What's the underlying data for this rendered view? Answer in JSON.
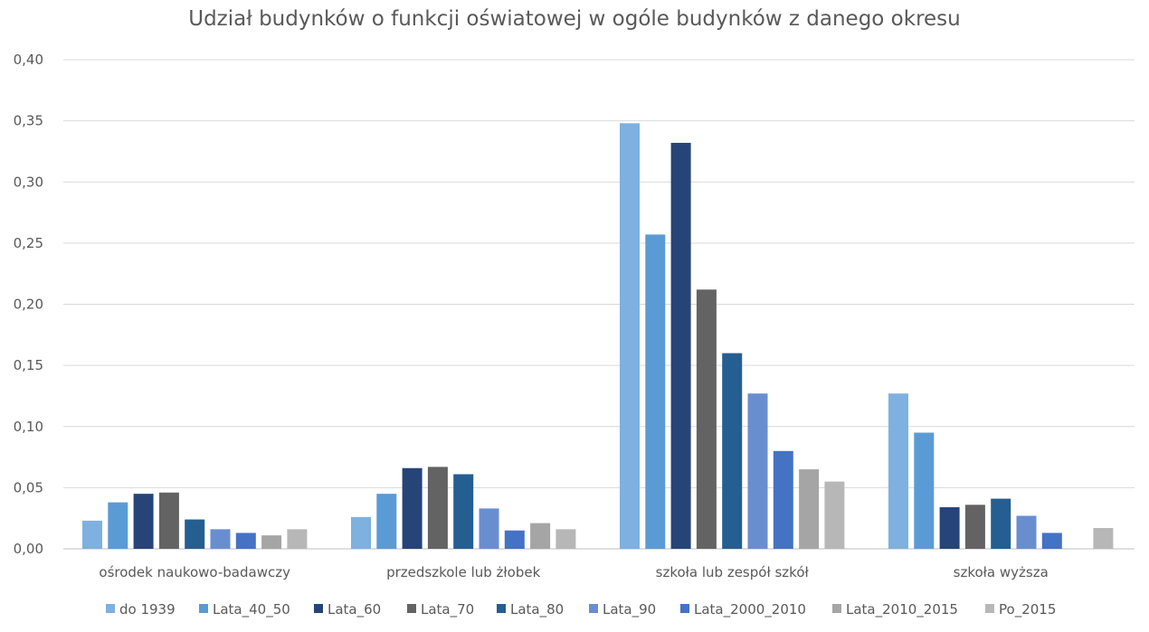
{
  "chart_data": {
    "type": "bar",
    "title": "Udział budynków o funkcji oświatowej w ogóle budynków z danego okresu",
    "xlabel": "",
    "ylabel": "",
    "categories": [
      "ośrodek naukowo-badawczy",
      "przedszkole lub żłobek",
      "szkoła lub zespół szkół",
      "szkoła wyższa"
    ],
    "y_ticks": [
      "0,00",
      "0,05",
      "0,10",
      "0,15",
      "0,20",
      "0,25",
      "0,30",
      "0,35",
      "0,40"
    ],
    "ylim": [
      0,
      0.4
    ],
    "grid": true,
    "legend_position": "bottom",
    "series": [
      {
        "name": "do 1939",
        "color": "#7EB0E0",
        "values": [
          0.023,
          0.026,
          0.348,
          0.127
        ]
      },
      {
        "name": "Lata_40_50",
        "color": "#5B9BD5",
        "values": [
          0.038,
          0.045,
          0.257,
          0.095
        ]
      },
      {
        "name": "Lata_60",
        "color": "#264478",
        "values": [
          0.045,
          0.066,
          0.332,
          0.034
        ]
      },
      {
        "name": "Lata_70",
        "color": "#636363",
        "values": [
          0.046,
          0.067,
          0.212,
          0.036
        ]
      },
      {
        "name": "Lata_80",
        "color": "#255E91",
        "values": [
          0.024,
          0.061,
          0.16,
          0.041
        ]
      },
      {
        "name": "Lata_90",
        "color": "#698ED0",
        "values": [
          0.016,
          0.033,
          0.127,
          0.027
        ]
      },
      {
        "name": "Lata_2000_2010",
        "color": "#4472C4",
        "values": [
          0.013,
          0.015,
          0.08,
          0.013
        ]
      },
      {
        "name": "Lata_2010_2015",
        "color": "#A5A5A5",
        "values": [
          0.011,
          0.021,
          0.065,
          0.0
        ]
      },
      {
        "name": "Po_2015",
        "color": "#B7B7B7",
        "values": [
          0.016,
          0.016,
          0.055,
          0.017
        ]
      }
    ]
  }
}
